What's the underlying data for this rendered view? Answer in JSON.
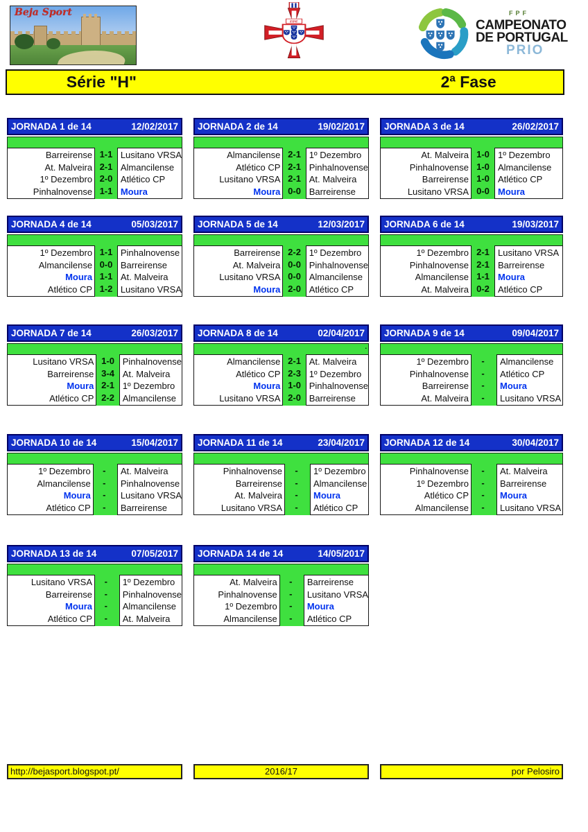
{
  "brand": {
    "photo_text": "Beja Sport"
  },
  "fpf_crest": {
    "label": "FPF"
  },
  "prio_logo": {
    "fpf": "FPF",
    "line1": "CAMPEONATO",
    "line2": "DE PORTUGAL",
    "line3": "PRIO"
  },
  "banner": {
    "left": "Série \"H\"",
    "right": "2ª Fase"
  },
  "highlight_team": "Moura",
  "colors": {
    "header_blue": "#1431c8",
    "green": "#3fe03f",
    "yellow": "#ffff00",
    "moura_blue": "#0033ee",
    "prio_blue": "#8cb8d8"
  },
  "footer": {
    "left": "http://bejasport.blogspot.pt/",
    "center": "2016/17",
    "right": "por Pelosiro"
  },
  "jornadas": [
    {
      "title": "JORNADA 1 de 14",
      "date": "12/02/2017",
      "note": "",
      "matches": [
        {
          "home": "Barreirense",
          "score": "1-1",
          "away": "Lusitano VRSA"
        },
        {
          "home": "At. Malveira",
          "score": "2-1",
          "away": "Almancilense"
        },
        {
          "home": "1º Dezembro",
          "score": "2-0",
          "away": "Atlético CP"
        },
        {
          "home": "Pinhalnovense",
          "score": "1-1",
          "away": "Moura"
        }
      ]
    },
    {
      "title": "JORNADA 2 de 14",
      "date": "19/02/2017",
      "note": "",
      "matches": [
        {
          "home": "Almancilense",
          "score": "2-1",
          "away": "1º Dezembro"
        },
        {
          "home": "Atlético CP",
          "score": "2-1",
          "away": "Pinhalnovense"
        },
        {
          "home": "Lusitano VRSA",
          "score": "2-1",
          "away": "At. Malveira"
        },
        {
          "home": "Moura",
          "score": "0-0",
          "away": "Barreirense"
        }
      ]
    },
    {
      "title": "JORNADA 3 de 14",
      "date": "26/02/2017",
      "note": "",
      "matches": [
        {
          "home": "At. Malveira",
          "score": "1-0",
          "away": "1º Dezembro"
        },
        {
          "home": "Pinhalnovense",
          "score": "1-0",
          "away": "Almancilense"
        },
        {
          "home": "Barreirense",
          "score": "1-0",
          "away": "Atlético CP"
        },
        {
          "home": "Lusitano VRSA",
          "score": "0-0",
          "away": "Moura"
        }
      ]
    },
    {
      "title": "JORNADA 4 de 14",
      "date": "05/03/2017",
      "note": "",
      "matches": [
        {
          "home": "1º Dezembro",
          "score": "1-1",
          "away": "Pinhalnovense"
        },
        {
          "home": "Almancilense",
          "score": "0-0",
          "away": "Barreirense"
        },
        {
          "home": "Moura",
          "score": "1-1",
          "away": "At. Malveira"
        },
        {
          "home": "Atlético CP",
          "score": "1-2",
          "away": "Lusitano VRSA"
        }
      ]
    },
    {
      "title": "JORNADA 5 de 14",
      "date": "12/03/2017",
      "note": "",
      "matches": [
        {
          "home": "Barreirense",
          "score": "2-2",
          "away": "1º Dezembro"
        },
        {
          "home": "At. Malveira",
          "score": "0-0",
          "away": "Pinhalnovense"
        },
        {
          "home": "Lusitano VRSA",
          "score": "0-0",
          "away": "Almancilense"
        },
        {
          "home": "Moura",
          "score": "2-0",
          "away": "Atlético CP"
        }
      ]
    },
    {
      "title": "JORNADA 6 de 14",
      "date": "19/03/2017",
      "note": "",
      "matches": [
        {
          "home": "1º Dezembro",
          "score": "2-1",
          "away": "Lusitano VRSA"
        },
        {
          "home": "Pinhalnovense",
          "score": "2-1",
          "away": "Barreirense"
        },
        {
          "home": "Almancilense",
          "score": "1-1",
          "away": "Moura"
        },
        {
          "home": "At. Malveira",
          "score": "0-2",
          "away": "Atlético CP"
        }
      ]
    },
    {
      "title": "JORNADA 7 de 14",
      "date": "26/03/2017",
      "note": "",
      "matches": [
        {
          "home": "Lusitano VRSA",
          "score": "1-0",
          "away": "Pinhalnovense"
        },
        {
          "home": "Barreirense",
          "score": "3-4",
          "away": "At. Malveira"
        },
        {
          "home": "Moura",
          "score": "2-1",
          "away": "1º Dezembro"
        },
        {
          "home": "Atlético CP",
          "score": "2-2",
          "away": "Almancilense"
        }
      ]
    },
    {
      "title": "JORNADA 8 de 14",
      "date": "02/04/2017",
      "note": ".",
      "matches": [
        {
          "home": "Almancilense",
          "score": "2-1",
          "away": "At. Malveira"
        },
        {
          "home": "Atlético CP",
          "score": "2-3",
          "away": "1º Dezembro"
        },
        {
          "home": "Moura",
          "score": "1-0",
          "away": "Pinhalnovense"
        },
        {
          "home": "Lusitano VRSA",
          "score": "2-0",
          "away": "Barreirense"
        }
      ]
    },
    {
      "title": "JORNADA 9 de 14",
      "date": "09/04/2017",
      "note": "",
      "matches": [
        {
          "home": "1º Dezembro",
          "score": "-",
          "away": "Almancilense"
        },
        {
          "home": "Pinhalnovense",
          "score": "-",
          "away": "Atlético CP"
        },
        {
          "home": "Barreirense",
          "score": "-",
          "away": "Moura"
        },
        {
          "home": "At. Malveira",
          "score": "-",
          "away": "Lusitano VRSA"
        }
      ]
    },
    {
      "title": "JORNADA 10 de 14",
      "date": "15/04/2017",
      "note": "",
      "matches": [
        {
          "home": "1º Dezembro",
          "score": "-",
          "away": "At. Malveira"
        },
        {
          "home": "Almancilense",
          "score": "-",
          "away": "Pinhalnovense"
        },
        {
          "home": "Moura",
          "score": "-",
          "away": "Lusitano VRSA"
        },
        {
          "home": "Atlético CP",
          "score": "-",
          "away": "Barreirense"
        }
      ]
    },
    {
      "title": "JORNADA 11 de 14",
      "date": "23/04/2017",
      "note": "",
      "matches": [
        {
          "home": "Pinhalnovense",
          "score": "-",
          "away": "1º Dezembro"
        },
        {
          "home": "Barreirense",
          "score": "-",
          "away": "Almancilense"
        },
        {
          "home": "At. Malveira",
          "score": "-",
          "away": "Moura"
        },
        {
          "home": "Lusitano VRSA",
          "score": "-",
          "away": "Atlético CP"
        }
      ]
    },
    {
      "title": "JORNADA 12 de 14",
      "date": "30/04/2017",
      "note": "",
      "matches": [
        {
          "home": "Pinhalnovense",
          "score": "-",
          "away": "At. Malveira"
        },
        {
          "home": "1º Dezembro",
          "score": "-",
          "away": "Barreirense"
        },
        {
          "home": "Atlético CP",
          "score": "-",
          "away": "Moura"
        },
        {
          "home": "Almancilense",
          "score": "-",
          "away": "Lusitano VRSA"
        }
      ]
    },
    {
      "title": "JORNADA 13 de 14",
      "date": "07/05/2017",
      "note": "",
      "matches": [
        {
          "home": "Lusitano VRSA",
          "score": "-",
          "away": "1º Dezembro"
        },
        {
          "home": "Barreirense",
          "score": "-",
          "away": "Pinhalnovense"
        },
        {
          "home": "Moura",
          "score": "-",
          "away": "Almancilense"
        },
        {
          "home": "Atlético CP",
          "score": "-",
          "away": "At. Malveira"
        }
      ]
    },
    {
      "title": "JORNADA 14 de 14",
      "date": "14/05/2017",
      "note": "",
      "matches": [
        {
          "home": "At. Malveira",
          "score": "-",
          "away": "Barreirense"
        },
        {
          "home": "Pinhalnovense",
          "score": "-",
          "away": "Lusitano VRSA"
        },
        {
          "home": "1º Dezembro",
          "score": "-",
          "away": "Moura"
        },
        {
          "home": "Almancilense",
          "score": "-",
          "away": "Atlético CP"
        }
      ]
    }
  ]
}
